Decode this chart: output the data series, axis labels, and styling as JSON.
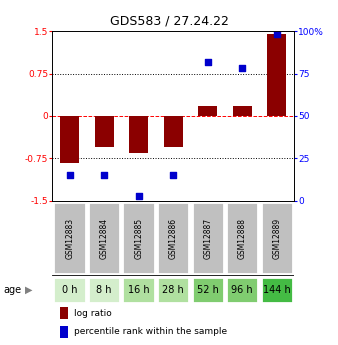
{
  "title": "GDS583 / 27.24.22",
  "samples": [
    "GSM12883",
    "GSM12884",
    "GSM12885",
    "GSM12886",
    "GSM12887",
    "GSM12888",
    "GSM12889"
  ],
  "ages": [
    "0 h",
    "8 h",
    "16 h",
    "28 h",
    "52 h",
    "96 h",
    "144 h"
  ],
  "log_ratios": [
    -0.83,
    -0.55,
    -0.65,
    -0.55,
    0.17,
    0.17,
    1.45
  ],
  "percentile_ranks": [
    15,
    15,
    3,
    15,
    82,
    78,
    98
  ],
  "bar_color": "#8B0000",
  "dot_color": "#0000CC",
  "ylim": [
    -1.5,
    1.5
  ],
  "yticks_left": [
    -1.5,
    -0.75,
    0,
    0.75,
    1.5
  ],
  "yticks_right": [
    0,
    25,
    50,
    75,
    100
  ],
  "hlines": [
    -0.75,
    0,
    0.75
  ],
  "hline_styles": [
    "dotted",
    "dashed",
    "dotted"
  ],
  "hline_colors": [
    "black",
    "red",
    "black"
  ],
  "sample_bg_color": "#c0c0c0",
  "age_bg_colors": [
    "#d4eecc",
    "#d4eecc",
    "#b0e0a0",
    "#b0e0a0",
    "#80cc70",
    "#80cc70",
    "#44bb44"
  ],
  "legend_log_ratio": "log ratio",
  "legend_percentile": "percentile rank within the sample"
}
